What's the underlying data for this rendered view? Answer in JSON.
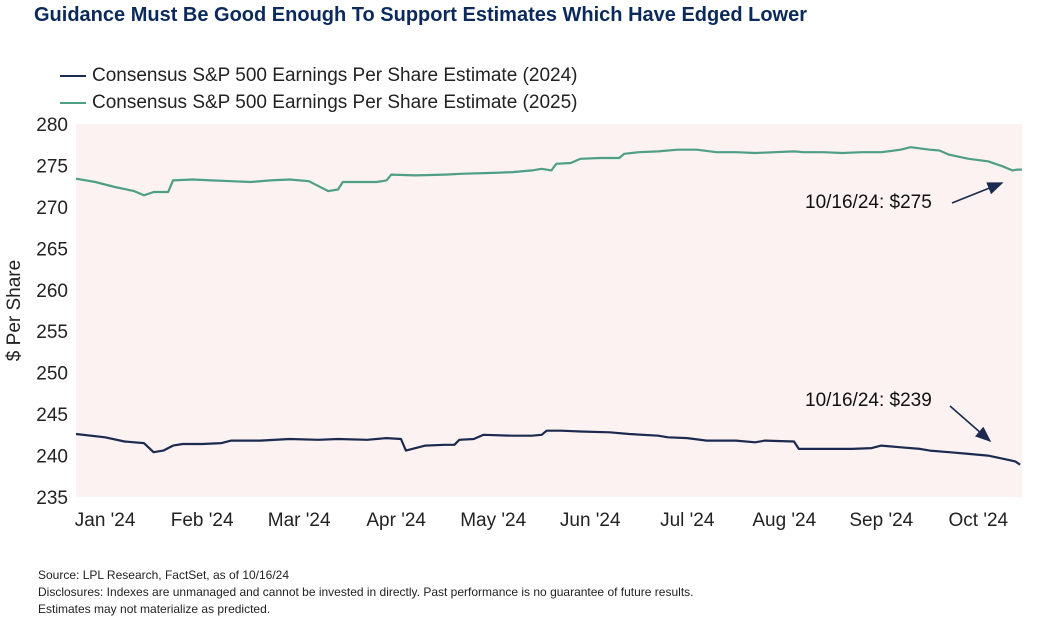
{
  "title": "Guidance Must Be Good Enough To Support Estimates Which Have Edged Lower",
  "legend": [
    {
      "label": "Consensus S&P 500 Earnings Per Share Estimate (2024)",
      "color": "#1b2a4e"
    },
    {
      "label": "Consensus S&P 500 Earnings Per Share Estimate (2025)",
      "color": "#4f9e86"
    }
  ],
  "notes": [
    "Source: LPL Research, FactSet, as of 10/16/24",
    "Disclosures: Indexes are unmanaged and cannot be invested in directly. Past performance is no guarantee of future results.",
    "Estimates may not materialize as predicted."
  ],
  "chart_data": {
    "type": "line",
    "ylabel": "$ Per Share",
    "ylim": [
      235,
      280
    ],
    "yticks": [
      235,
      240,
      245,
      250,
      255,
      260,
      265,
      270,
      275,
      280
    ],
    "xlim": [
      0,
      9.75
    ],
    "xticks": [
      {
        "label": "Jan '24",
        "x": 0.3
      },
      {
        "label": "Feb '24",
        "x": 1.3
      },
      {
        "label": "Mar '24",
        "x": 2.3
      },
      {
        "label": "Apr '24",
        "x": 3.3
      },
      {
        "label": "May '24",
        "x": 4.3
      },
      {
        "label": "Jun '24",
        "x": 5.3
      },
      {
        "label": "Jul '24",
        "x": 6.3
      },
      {
        "label": "Aug '24",
        "x": 7.3
      },
      {
        "label": "Sep '24",
        "x": 8.3
      },
      {
        "label": "Oct '24",
        "x": 9.3
      }
    ],
    "background": "#fbf2f1",
    "series": [
      {
        "name": "Consensus S&P 500 Earnings Per Share Estimate (2024)",
        "color": "#1b2a4e",
        "points": [
          [
            0,
            242.6
          ],
          [
            0.3,
            242.2
          ],
          [
            0.5,
            241.7
          ],
          [
            0.7,
            241.5
          ],
          [
            0.8,
            240.4
          ],
          [
            0.9,
            240.6
          ],
          [
            1.0,
            241.2
          ],
          [
            1.1,
            241.4
          ],
          [
            1.3,
            241.4
          ],
          [
            1.5,
            241.5
          ],
          [
            1.6,
            241.8
          ],
          [
            1.9,
            241.8
          ],
          [
            2.2,
            242.0
          ],
          [
            2.5,
            241.9
          ],
          [
            2.7,
            242.0
          ],
          [
            3.0,
            241.9
          ],
          [
            3.2,
            242.1
          ],
          [
            3.35,
            242.0
          ],
          [
            3.4,
            240.6
          ],
          [
            3.6,
            241.2
          ],
          [
            3.8,
            241.3
          ],
          [
            3.9,
            241.3
          ],
          [
            3.95,
            241.9
          ],
          [
            4.1,
            242.0
          ],
          [
            4.2,
            242.5
          ],
          [
            4.5,
            242.4
          ],
          [
            4.7,
            242.4
          ],
          [
            4.8,
            242.5
          ],
          [
            4.85,
            243.0
          ],
          [
            5.0,
            243.0
          ],
          [
            5.2,
            242.9
          ],
          [
            5.5,
            242.8
          ],
          [
            5.7,
            242.6
          ],
          [
            6.0,
            242.4
          ],
          [
            6.1,
            242.2
          ],
          [
            6.3,
            242.1
          ],
          [
            6.5,
            241.8
          ],
          [
            6.8,
            241.8
          ],
          [
            7.0,
            241.6
          ],
          [
            7.1,
            241.8
          ],
          [
            7.4,
            241.7
          ],
          [
            7.45,
            240.8
          ],
          [
            7.7,
            240.8
          ],
          [
            8.0,
            240.8
          ],
          [
            8.2,
            240.9
          ],
          [
            8.3,
            241.2
          ],
          [
            8.5,
            241.0
          ],
          [
            8.7,
            240.8
          ],
          [
            8.8,
            240.6
          ],
          [
            9.0,
            240.4
          ],
          [
            9.2,
            240.2
          ],
          [
            9.4,
            240.0
          ],
          [
            9.6,
            239.5
          ],
          [
            9.68,
            239.3
          ],
          [
            9.73,
            238.9
          ]
        ]
      },
      {
        "name": "Consensus S&P 500 Earnings Per Share Estimate (2025)",
        "color": "#4f9e86",
        "points": [
          [
            0,
            273.4
          ],
          [
            0.2,
            273.0
          ],
          [
            0.4,
            272.4
          ],
          [
            0.6,
            271.9
          ],
          [
            0.7,
            271.4
          ],
          [
            0.8,
            271.8
          ],
          [
            0.95,
            271.8
          ],
          [
            1.0,
            273.2
          ],
          [
            1.2,
            273.3
          ],
          [
            1.4,
            273.2
          ],
          [
            1.6,
            273.1
          ],
          [
            1.8,
            273.0
          ],
          [
            2.0,
            273.2
          ],
          [
            2.2,
            273.3
          ],
          [
            2.4,
            273.1
          ],
          [
            2.5,
            272.5
          ],
          [
            2.6,
            271.9
          ],
          [
            2.7,
            272.1
          ],
          [
            2.75,
            273.0
          ],
          [
            2.9,
            273.0
          ],
          [
            3.1,
            273.0
          ],
          [
            3.2,
            273.2
          ],
          [
            3.25,
            273.9
          ],
          [
            3.5,
            273.8
          ],
          [
            3.8,
            273.9
          ],
          [
            4.0,
            274.0
          ],
          [
            4.3,
            274.1
          ],
          [
            4.5,
            274.2
          ],
          [
            4.7,
            274.4
          ],
          [
            4.8,
            274.6
          ],
          [
            4.9,
            274.4
          ],
          [
            4.95,
            275.2
          ],
          [
            5.1,
            275.3
          ],
          [
            5.2,
            275.8
          ],
          [
            5.4,
            275.9
          ],
          [
            5.6,
            275.9
          ],
          [
            5.65,
            276.4
          ],
          [
            5.8,
            276.6
          ],
          [
            6.0,
            276.7
          ],
          [
            6.2,
            276.9
          ],
          [
            6.4,
            276.9
          ],
          [
            6.6,
            276.6
          ],
          [
            6.8,
            276.6
          ],
          [
            7.0,
            276.5
          ],
          [
            7.2,
            276.6
          ],
          [
            7.4,
            276.7
          ],
          [
            7.5,
            276.6
          ],
          [
            7.7,
            276.6
          ],
          [
            7.9,
            276.5
          ],
          [
            8.1,
            276.6
          ],
          [
            8.3,
            276.6
          ],
          [
            8.5,
            276.9
          ],
          [
            8.6,
            277.2
          ],
          [
            8.8,
            276.9
          ],
          [
            8.9,
            276.8
          ],
          [
            9.0,
            276.3
          ],
          [
            9.2,
            275.8
          ],
          [
            9.4,
            275.5
          ],
          [
            9.55,
            274.9
          ],
          [
            9.65,
            274.4
          ],
          [
            9.7,
            274.5
          ],
          [
            9.75,
            274.5
          ]
        ]
      }
    ],
    "annotations": [
      {
        "text": "10/16/24: $275",
        "target": [
          9.7,
          274.4
        ]
      },
      {
        "text": "10/16/24: $239",
        "target": [
          9.73,
          239.2
        ]
      }
    ]
  }
}
